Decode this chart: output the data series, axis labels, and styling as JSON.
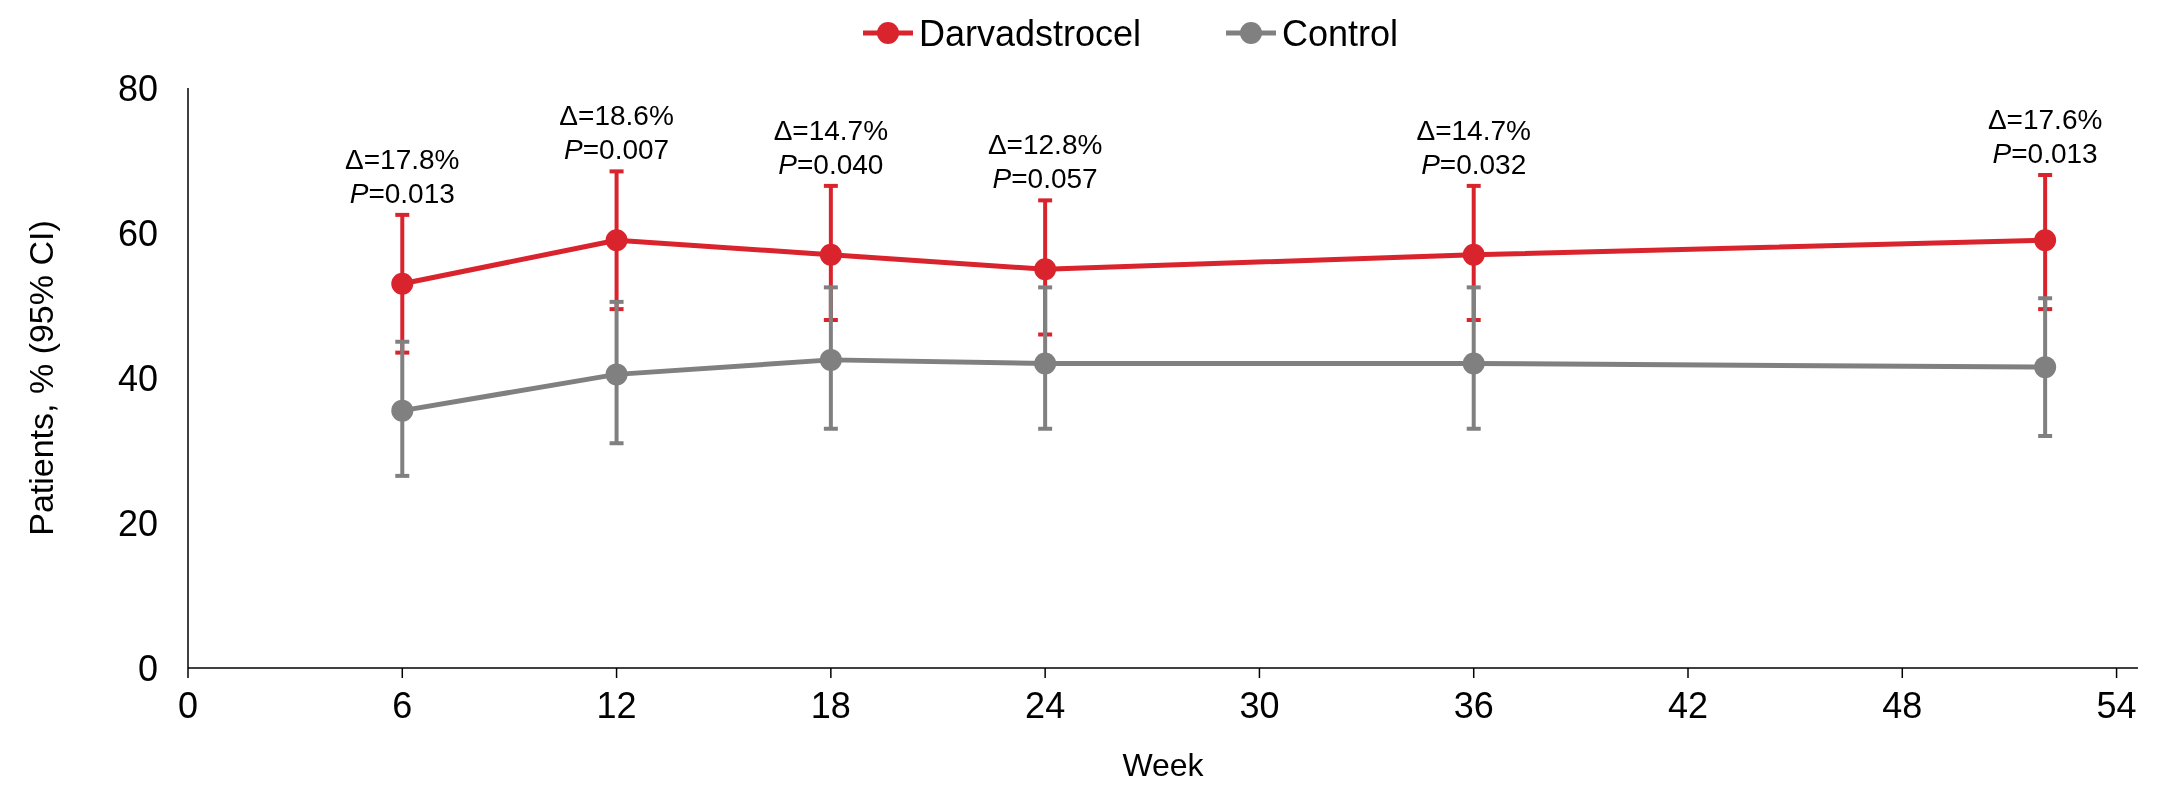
{
  "chart_data": {
    "type": "line",
    "xlabel": "Week",
    "ylabel": "Patients, % (95% CI)",
    "x": [
      6,
      12,
      18,
      24,
      36,
      52
    ],
    "series": [
      {
        "name": "Darvadstrocel",
        "color": "#d9232d",
        "values": [
          53,
          59,
          57,
          55,
          57,
          59
        ],
        "errors": [
          [
            43.5,
            62.5
          ],
          [
            49.5,
            68.5
          ],
          [
            48,
            66.5
          ],
          [
            46,
            64.5
          ],
          [
            48,
            66.5
          ],
          [
            49.5,
            68
          ]
        ]
      },
      {
        "name": "Control",
        "color": "#808080",
        "values": [
          35.5,
          40.5,
          42.5,
          42,
          42,
          41.5
        ],
        "errors": [
          [
            26.5,
            45
          ],
          [
            31,
            50.5
          ],
          [
            33,
            52.5
          ],
          [
            33,
            52.5
          ],
          [
            33,
            52.5
          ],
          [
            32,
            51
          ]
        ]
      }
    ],
    "xlim": [
      0,
      54.6
    ],
    "xticks": [
      0,
      6,
      12,
      18,
      24,
      30,
      36,
      42,
      48,
      54
    ],
    "ylim": [
      0,
      80
    ],
    "yticks": [
      0,
      20,
      40,
      60,
      80
    ],
    "grid": false,
    "legend": "top",
    "marker": "circle",
    "line_style": "solid",
    "annotations": [
      {
        "text": "Δ=17.8%\nP=0.013",
        "x": 6,
        "y": 62.5
      },
      {
        "text": "Δ=18.6%\nP=0.007",
        "x": 12,
        "y": 68.5
      },
      {
        "text": "Δ=14.7%\nP=0.040",
        "x": 18,
        "y": 66.5
      },
      {
        "text": "Δ=12.8%\nP=0.057",
        "x": 24,
        "y": 64.5
      },
      {
        "text": "Δ=14.7%\nP=0.032",
        "x": 36,
        "y": 66.5
      },
      {
        "text": "Δ=17.6%\nP=0.013",
        "x": 52,
        "y": 68
      }
    ]
  }
}
